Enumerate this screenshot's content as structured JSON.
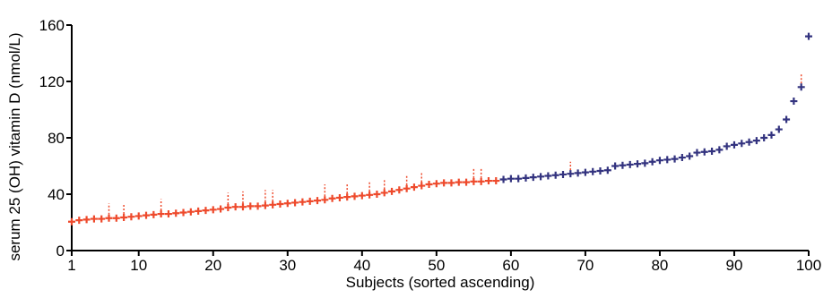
{
  "chart_data": {
    "type": "scatter",
    "xlabel": "Subjects (sorted ascending)",
    "ylabel": "serum 25 (OH) vitamin D (nmol/L)",
    "xlim": [
      1,
      100
    ],
    "ylim": [
      0,
      160
    ],
    "x_ticks": [
      1,
      10,
      20,
      30,
      40,
      50,
      60,
      70,
      80,
      90,
      100
    ],
    "y_ticks": [
      0,
      40,
      80,
      120,
      160
    ],
    "grid": false,
    "legend": "none",
    "colors": {
      "red": "#ee4a2c",
      "blue": "#33337f"
    },
    "series": [
      {
        "color": "red",
        "x": [
          1,
          2,
          3,
          4,
          5,
          6,
          7,
          8,
          9,
          10,
          11,
          12,
          13,
          14,
          15,
          16,
          17,
          18,
          19,
          20,
          21,
          22,
          23,
          24,
          25,
          26,
          27,
          28,
          29,
          30,
          31,
          32,
          33,
          34,
          35,
          36,
          37,
          38,
          39,
          40,
          41,
          42,
          43,
          44,
          45,
          46,
          47,
          48,
          49,
          50,
          51,
          52,
          53,
          54,
          55,
          56,
          57,
          58
        ],
        "y": [
          20.5,
          21.5,
          22,
          22.5,
          22.5,
          23,
          23,
          23.5,
          24,
          24.5,
          25,
          25.5,
          26,
          26,
          26.5,
          27,
          27.5,
          28,
          28.5,
          29,
          29.5,
          30.5,
          31,
          31,
          31.5,
          31.5,
          32,
          32.5,
          33,
          33.5,
          34,
          34.5,
          35,
          35.5,
          36,
          37,
          37.5,
          38,
          38.5,
          39,
          39.5,
          40,
          41,
          42,
          43,
          44,
          45,
          46,
          47,
          47.5,
          48,
          48,
          48.5,
          48.5,
          49,
          49,
          49.5,
          49.5
        ]
      },
      {
        "color": "blue",
        "x": [
          59,
          60,
          61,
          62,
          63,
          64,
          65,
          66,
          67,
          68,
          69,
          70,
          71,
          72,
          73,
          74,
          75,
          76,
          77,
          78,
          79,
          80,
          81,
          82,
          83,
          84,
          85,
          86,
          87,
          88,
          89,
          90,
          91,
          92,
          93,
          94,
          95,
          96,
          97,
          98,
          99,
          100
        ],
        "y": [
          50.5,
          51,
          51,
          51.5,
          52,
          52.5,
          53,
          53.5,
          54,
          54.5,
          55,
          55.5,
          56,
          56.5,
          57,
          60,
          60.5,
          61,
          61.5,
          62,
          63,
          64,
          64.5,
          65,
          66,
          67,
          69.5,
          70,
          70.5,
          71.5,
          74,
          75,
          76,
          77,
          78,
          80,
          82,
          86,
          93,
          106,
          116,
          152
        ]
      }
    ],
    "annotations": {
      "type": "error_bars",
      "color": "red",
      "points": [
        {
          "x": 6,
          "top": 33.5
        },
        {
          "x": 8,
          "top": 33.5
        },
        {
          "x": 13,
          "top": 36.5
        },
        {
          "x": 22,
          "top": 41
        },
        {
          "x": 24,
          "top": 42
        },
        {
          "x": 27,
          "top": 43
        },
        {
          "x": 28,
          "top": 43
        },
        {
          "x": 35,
          "top": 47
        },
        {
          "x": 38,
          "top": 48
        },
        {
          "x": 41,
          "top": 49
        },
        {
          "x": 43,
          "top": 51
        },
        {
          "x": 46,
          "top": 54
        },
        {
          "x": 48,
          "top": 55
        },
        {
          "x": 55,
          "top": 58
        },
        {
          "x": 56,
          "top": 58
        },
        {
          "x": 68,
          "top": 63
        },
        {
          "x": 99,
          "top": 125
        }
      ]
    }
  }
}
